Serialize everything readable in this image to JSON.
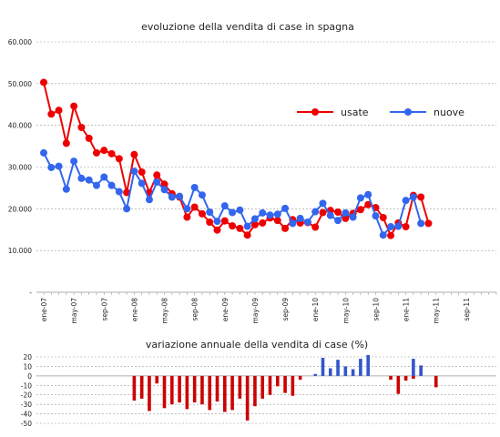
{
  "chart_data": [
    {
      "type": "line",
      "title": "evoluzione della vendita di case in spagna",
      "ylim": [
        0,
        60000
      ],
      "y_ticks": [
        "-",
        "10.000",
        "20.000",
        "30.000",
        "40.000",
        "50.000",
        "60.000"
      ],
      "y_tick_values": [
        0,
        10000,
        20000,
        30000,
        40000,
        50000,
        60000
      ],
      "x_tick_labels": [
        "ene-07",
        "may-07",
        "sep-07",
        "ene-08",
        "may-08",
        "sep-08",
        "ene-09",
        "may-09",
        "sep-09",
        "ene-10",
        "may-10",
        "sep-10",
        "ene-11",
        "may-11",
        "sep-11"
      ],
      "x_tick_index": [
        0,
        4,
        8,
        12,
        16,
        20,
        24,
        28,
        32,
        36,
        40,
        44,
        48,
        52,
        56
      ],
      "x_range": [
        0,
        60
      ],
      "grid": "horizontal dashed",
      "legend_position": "right-middle",
      "series": [
        {
          "name": "usate",
          "color": "#ee0000",
          "values": [
            50300,
            42700,
            43600,
            35700,
            44600,
            39500,
            36900,
            33400,
            34000,
            33200,
            32000,
            23900,
            33000,
            28800,
            23900,
            28100,
            25900,
            23600,
            22800,
            18000,
            20400,
            18800,
            16800,
            14900,
            17100,
            15900,
            15300,
            13700,
            16200,
            16600,
            17800,
            17200,
            15300,
            17400,
            16600,
            16700,
            15600,
            19100,
            19600,
            19200,
            17700,
            18900,
            19800,
            21000,
            20300,
            17900,
            13600,
            16600,
            15700,
            23200,
            22800,
            16500
          ],
          "x_start": 0
        },
        {
          "name": "nuove",
          "color": "#3366ee",
          "values": [
            33400,
            29900,
            30200,
            24700,
            31400,
            27300,
            26900,
            25600,
            27600,
            25600,
            24100,
            20000,
            29000,
            26100,
            22200,
            26400,
            24600,
            22800,
            23000,
            20000,
            25100,
            23300,
            19200,
            17000,
            20700,
            19100,
            19700,
            15800,
            17600,
            19000,
            18500,
            18700,
            20100,
            16500,
            17700,
            16800,
            19300,
            21300,
            18400,
            17200,
            19000,
            18000,
            22600,
            23400,
            18300,
            13700,
            15700,
            15800,
            22000,
            22800,
            16500
          ],
          "x_start": 0
        }
      ]
    },
    {
      "type": "bar",
      "title": "variazione annuale della vendita di case (%)",
      "ylim": [
        -50,
        20
      ],
      "y_ticks": [
        "20",
        "10",
        "0",
        "-10",
        "-20",
        "-30",
        "-40",
        "-50"
      ],
      "y_tick_values": [
        20,
        10,
        0,
        -10,
        -20,
        -30,
        -40,
        -50
      ],
      "grid": "horizontal dashed",
      "series": [
        {
          "name": "usate",
          "color": "#cc0000",
          "x_start": 12,
          "values": [
            -26,
            -24,
            -37,
            -8,
            -34,
            -30,
            -28,
            -35,
            -28,
            -30,
            -36,
            -27,
            -38,
            -36,
            -24,
            -47,
            -32,
            -24,
            -20,
            -11,
            -18,
            -21,
            -4,
            null,
            null,
            null,
            null,
            null,
            null,
            null,
            null,
            null,
            null,
            null,
            -4,
            -19,
            -5,
            -3,
            null,
            null,
            -12
          ]
        },
        {
          "name": "nuove",
          "color": "#3355cc",
          "x_start": 12,
          "values": [
            null,
            null,
            null,
            null,
            null,
            null,
            null,
            null,
            null,
            null,
            null,
            null,
            null,
            null,
            null,
            null,
            null,
            null,
            null,
            null,
            null,
            null,
            null,
            null,
            2,
            19,
            8,
            17,
            10,
            7,
            18,
            22,
            null,
            null,
            null,
            null,
            null,
            18,
            11
          ]
        }
      ]
    }
  ]
}
